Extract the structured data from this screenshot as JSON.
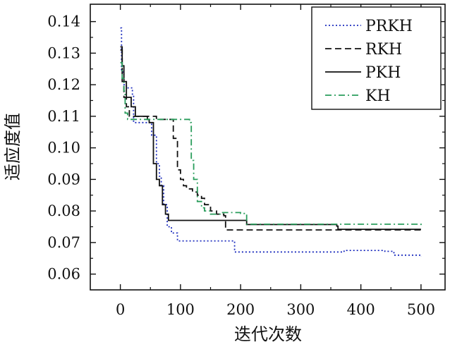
{
  "chart_data": {
    "type": "line",
    "title": "",
    "xlabel": "迭代次数",
    "ylabel": "适应度值",
    "xlim": [
      -50,
      540
    ],
    "ylim": [
      0.055,
      0.1455
    ],
    "x_ticks": [
      0,
      100,
      200,
      300,
      400,
      500
    ],
    "y_ticks": [
      0.06,
      0.07,
      0.08,
      0.09,
      0.1,
      0.11,
      0.12,
      0.13,
      0.14
    ],
    "y_tick_labels": [
      "0.06",
      "0.07",
      "0.08",
      "0.09",
      "0.10",
      "0.11",
      "0.12",
      "0.13",
      "0.14"
    ],
    "grid": false,
    "legend_position": "top-right",
    "series": [
      {
        "name": "PRKH",
        "color": "#1f2fbf",
        "dash": "dotted",
        "points": [
          [
            0,
            0.138
          ],
          [
            2,
            0.124
          ],
          [
            6,
            0.12
          ],
          [
            10,
            0.119
          ],
          [
            20,
            0.117
          ],
          [
            22,
            0.108
          ],
          [
            45,
            0.108
          ],
          [
            52,
            0.104
          ],
          [
            60,
            0.095
          ],
          [
            65,
            0.091
          ],
          [
            68,
            0.088
          ],
          [
            72,
            0.082
          ],
          [
            78,
            0.075
          ],
          [
            85,
            0.073
          ],
          [
            95,
            0.0705
          ],
          [
            130,
            0.0705
          ],
          [
            185,
            0.0705
          ],
          [
            190,
            0.067
          ],
          [
            290,
            0.067
          ],
          [
            370,
            0.067
          ],
          [
            372,
            0.0675
          ],
          [
            440,
            0.0672
          ],
          [
            455,
            0.066
          ],
          [
            500,
            0.0655
          ]
        ]
      },
      {
        "name": "RKH",
        "color": "#111111",
        "dash": "dashed",
        "points": [
          [
            0,
            0.131
          ],
          [
            3,
            0.121
          ],
          [
            6,
            0.116
          ],
          [
            10,
            0.113
          ],
          [
            15,
            0.11
          ],
          [
            60,
            0.109
          ],
          [
            82,
            0.109
          ],
          [
            88,
            0.103
          ],
          [
            95,
            0.093
          ],
          [
            100,
            0.09
          ],
          [
            105,
            0.088
          ],
          [
            110,
            0.087
          ],
          [
            120,
            0.086
          ],
          [
            125,
            0.086
          ],
          [
            128,
            0.085
          ],
          [
            135,
            0.084
          ],
          [
            140,
            0.082
          ],
          [
            150,
            0.08
          ],
          [
            160,
            0.079
          ],
          [
            172,
            0.0785
          ],
          [
            175,
            0.074
          ],
          [
            260,
            0.074
          ],
          [
            500,
            0.074
          ]
        ]
      },
      {
        "name": "PKH",
        "color": "#111111",
        "dash": "solid",
        "points": [
          [
            0,
            0.132
          ],
          [
            3,
            0.126
          ],
          [
            6,
            0.121
          ],
          [
            10,
            0.116
          ],
          [
            18,
            0.113
          ],
          [
            25,
            0.11
          ],
          [
            45,
            0.109
          ],
          [
            48,
            0.108
          ],
          [
            55,
            0.095
          ],
          [
            60,
            0.09
          ],
          [
            65,
            0.088
          ],
          [
            70,
            0.082
          ],
          [
            75,
            0.079
          ],
          [
            80,
            0.077
          ],
          [
            200,
            0.077
          ],
          [
            210,
            0.0757
          ],
          [
            300,
            0.0757
          ],
          [
            360,
            0.0752
          ],
          [
            362,
            0.0742
          ],
          [
            500,
            0.0742
          ]
        ]
      },
      {
        "name": "KH",
        "color": "#2a9d5c",
        "dash": "dashdot",
        "points": [
          [
            0,
            0.127
          ],
          [
            3,
            0.122
          ],
          [
            6,
            0.118
          ],
          [
            8,
            0.111
          ],
          [
            12,
            0.109
          ],
          [
            50,
            0.109
          ],
          [
            110,
            0.109
          ],
          [
            115,
            0.108
          ],
          [
            118,
            0.096
          ],
          [
            122,
            0.09
          ],
          [
            128,
            0.083
          ],
          [
            135,
            0.081
          ],
          [
            140,
            0.08
          ],
          [
            150,
            0.079
          ],
          [
            170,
            0.0795
          ],
          [
            185,
            0.0795
          ],
          [
            200,
            0.0792
          ],
          [
            210,
            0.0758
          ],
          [
            500,
            0.0754
          ]
        ]
      }
    ]
  }
}
